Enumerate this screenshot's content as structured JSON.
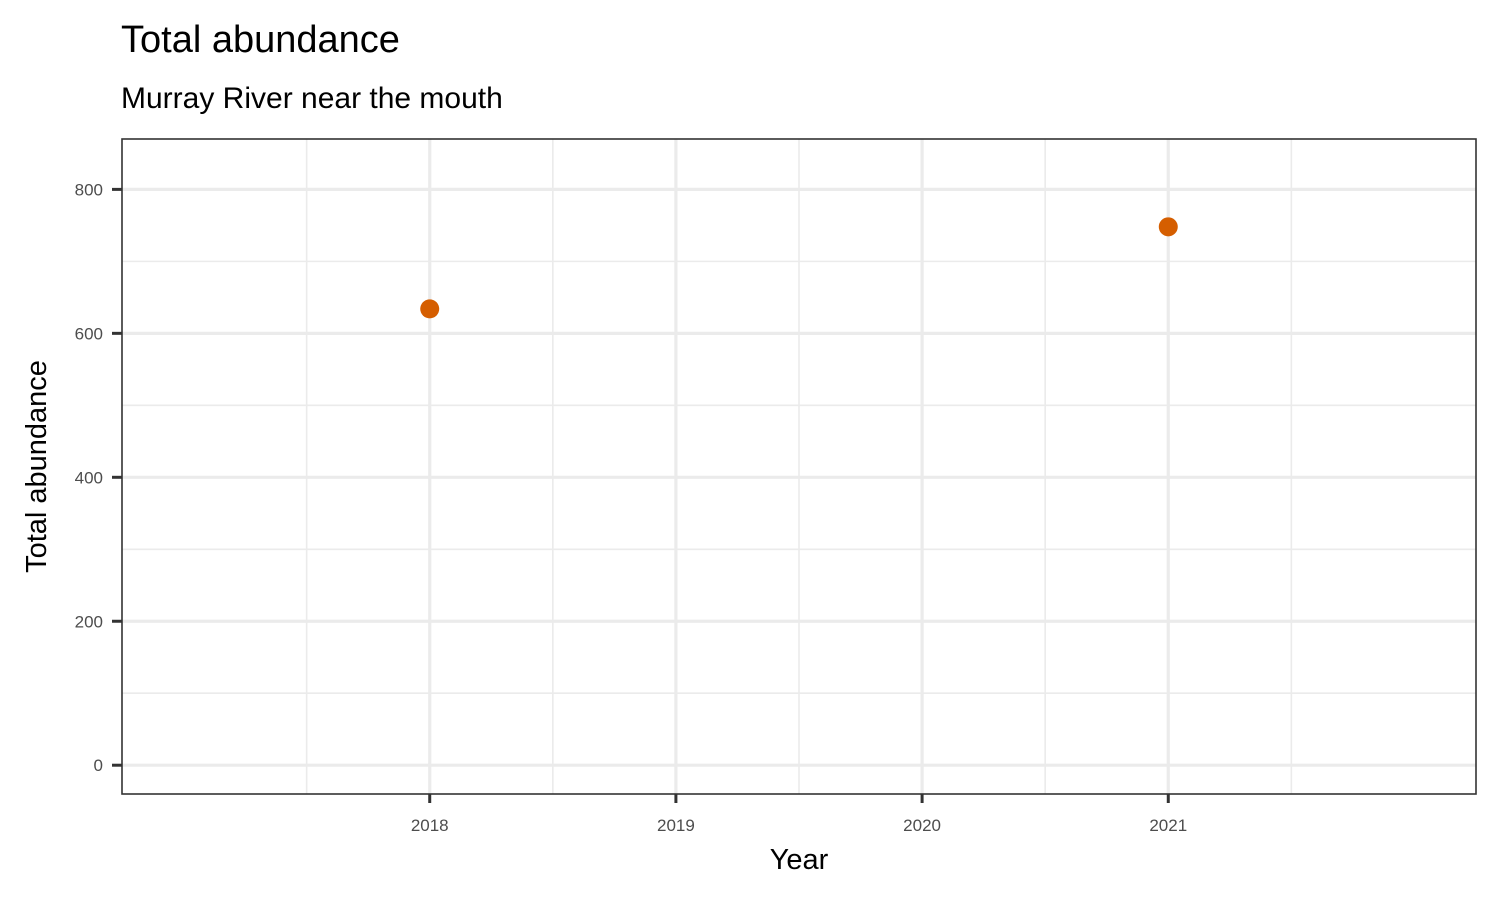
{
  "chart_data": {
    "type": "scatter",
    "title": "Total abundance",
    "subtitle": "Murray River near the mouth",
    "xlabel": "Year",
    "ylabel": "Total abundance",
    "xlim": [
      2016.75,
      2022.25
    ],
    "ylim": [
      -40,
      870
    ],
    "x_ticks": [
      2018,
      2019,
      2020,
      2021
    ],
    "y_ticks": [
      0,
      200,
      400,
      600,
      800
    ],
    "grid": true,
    "legend": "none",
    "point_color": "#D55E00",
    "points": [
      {
        "x": 2018,
        "y": 634
      },
      {
        "x": 2021,
        "y": 748
      }
    ]
  }
}
